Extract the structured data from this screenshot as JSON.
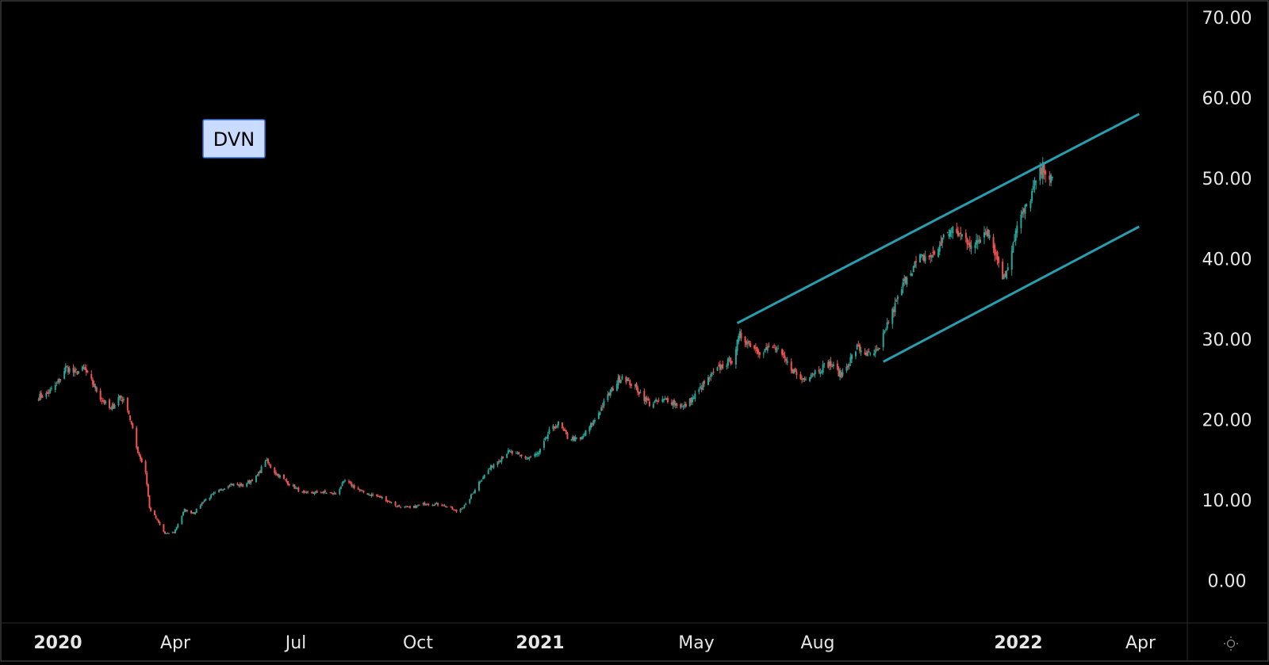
{
  "ticker_label": "DVN",
  "settings_icon": "sun-gear-icon",
  "colors": {
    "background": "#000000",
    "up": "#26a69a",
    "down": "#ef5350",
    "channel": "#26a0b0",
    "axis_text": "#e6e6e6",
    "label_bg": "#c9dcff",
    "label_border": "#3b6fd4"
  },
  "chart_data": {
    "type": "candlestick",
    "title": "",
    "xlabel": "",
    "ylabel": "",
    "ylim": [
      -5,
      72
    ],
    "y_ticks": [
      "70.00",
      "60.00",
      "50.00",
      "40.00",
      "30.00",
      "20.00",
      "10.00",
      "0.00"
    ],
    "x_ticks": [
      {
        "label": "2020",
        "date": "2020-01-01",
        "bold": true
      },
      {
        "label": "Apr",
        "date": "2020-04-01",
        "bold": false
      },
      {
        "label": "Jul",
        "date": "2020-07-01",
        "bold": false
      },
      {
        "label": "Oct",
        "date": "2020-10-01",
        "bold": false
      },
      {
        "label": "2021",
        "date": "2021-01-01",
        "bold": true
      },
      {
        "label": "May",
        "date": "2021-05-01",
        "bold": false
      },
      {
        "label": "Aug",
        "date": "2021-08-01",
        "bold": false
      },
      {
        "label": "2022",
        "date": "2022-01-01",
        "bold": true
      },
      {
        "label": "Apr",
        "date": "2022-04-01",
        "bold": false
      }
    ],
    "series": [
      {
        "points": [
          [
            "2019-12-17",
            22.8
          ],
          [
            "2019-12-24",
            23.2
          ],
          [
            "2020-01-02",
            24.8
          ],
          [
            "2020-01-07",
            26.5
          ],
          [
            "2020-01-14",
            25.8
          ],
          [
            "2020-01-21",
            26.3
          ],
          [
            "2020-01-28",
            24.5
          ],
          [
            "2020-02-04",
            22.5
          ],
          [
            "2020-02-11",
            21.2
          ],
          [
            "2020-02-18",
            23.0
          ],
          [
            "2020-02-24",
            21.5
          ],
          [
            "2020-03-02",
            16.5
          ],
          [
            "2020-03-09",
            13.5
          ],
          [
            "2020-03-12",
            9.0
          ],
          [
            "2020-03-18",
            7.5
          ],
          [
            "2020-03-24",
            5.8
          ],
          [
            "2020-03-31",
            6.0
          ],
          [
            "2020-04-08",
            8.8
          ],
          [
            "2020-04-15",
            8.4
          ],
          [
            "2020-04-23",
            10.0
          ],
          [
            "2020-05-01",
            10.8
          ],
          [
            "2020-05-12",
            12.0
          ],
          [
            "2020-05-22",
            11.8
          ],
          [
            "2020-06-02",
            13.0
          ],
          [
            "2020-06-08",
            15.0
          ],
          [
            "2020-06-15",
            13.5
          ],
          [
            "2020-06-26",
            12.0
          ],
          [
            "2020-07-07",
            10.8
          ],
          [
            "2020-07-20",
            11.0
          ],
          [
            "2020-07-31",
            10.8
          ],
          [
            "2020-08-07",
            12.4
          ],
          [
            "2020-08-20",
            11.0
          ],
          [
            "2020-09-04",
            10.3
          ],
          [
            "2020-09-15",
            9.3
          ],
          [
            "2020-09-25",
            9.0
          ],
          [
            "2020-10-07",
            9.6
          ],
          [
            "2020-10-20",
            9.4
          ],
          [
            "2020-10-30",
            8.6
          ],
          [
            "2020-11-06",
            9.4
          ],
          [
            "2020-11-17",
            12.5
          ],
          [
            "2020-11-27",
            14.5
          ],
          [
            "2020-12-08",
            16.0
          ],
          [
            "2020-12-22",
            15.2
          ],
          [
            "2020-12-31",
            15.8
          ],
          [
            "2021-01-08",
            18.5
          ],
          [
            "2021-01-15",
            19.5
          ],
          [
            "2021-01-22",
            17.8
          ],
          [
            "2021-02-01",
            17.5
          ],
          [
            "2021-02-12",
            20.0
          ],
          [
            "2021-02-24",
            23.5
          ],
          [
            "2021-03-05",
            25.5
          ],
          [
            "2021-03-15",
            24.0
          ],
          [
            "2021-03-26",
            22.0
          ],
          [
            "2021-04-09",
            22.5
          ],
          [
            "2021-04-21",
            21.5
          ],
          [
            "2021-04-29",
            22.8
          ],
          [
            "2021-05-07",
            24.5
          ],
          [
            "2021-05-19",
            26.5
          ],
          [
            "2021-05-28",
            27.5
          ],
          [
            "2021-06-03",
            30.5
          ],
          [
            "2021-06-10",
            29.5
          ],
          [
            "2021-06-18",
            28.5
          ],
          [
            "2021-06-29",
            29.0
          ],
          [
            "2021-07-09",
            27.0
          ],
          [
            "2021-07-19",
            25.0
          ],
          [
            "2021-07-30",
            26.0
          ],
          [
            "2021-08-10",
            27.0
          ],
          [
            "2021-08-19",
            25.5
          ],
          [
            "2021-08-31",
            29.0
          ],
          [
            "2021-09-09",
            28.0
          ],
          [
            "2021-09-17",
            28.5
          ],
          [
            "2021-09-22",
            31.5
          ],
          [
            "2021-09-30",
            34.5
          ],
          [
            "2021-10-08",
            38.0
          ],
          [
            "2021-10-18",
            40.0
          ],
          [
            "2021-10-29",
            40.5
          ],
          [
            "2021-11-08",
            43.5
          ],
          [
            "2021-11-18",
            43.0
          ],
          [
            "2021-11-29",
            41.5
          ],
          [
            "2021-12-08",
            44.0
          ],
          [
            "2021-12-15",
            40.5
          ],
          [
            "2021-12-21",
            37.5
          ],
          [
            "2021-12-31",
            44.0
          ],
          [
            "2022-01-07",
            46.5
          ],
          [
            "2022-01-14",
            49.5
          ],
          [
            "2022-01-20",
            51.5
          ],
          [
            "2022-01-26",
            49.5
          ]
        ]
      }
    ],
    "channel_lines": [
      {
        "from": [
          "2021-06-01",
          32.0
        ],
        "to": [
          "2022-03-31",
          58.0
        ]
      },
      {
        "from": [
          "2021-09-20",
          27.2
        ],
        "to": [
          "2022-03-31",
          44.0
        ]
      }
    ],
    "grid": false,
    "legend": "none"
  }
}
